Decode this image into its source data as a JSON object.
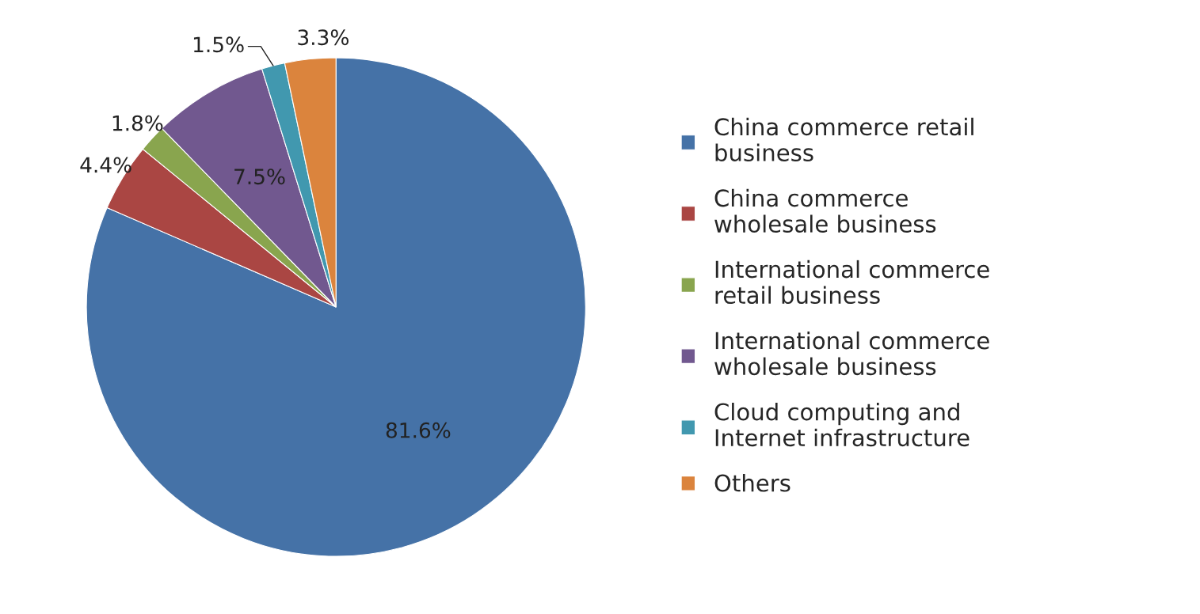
{
  "chart_data": {
    "type": "pie",
    "categories": [
      "China commerce retail\nbusiness",
      "China commerce\nwholesale business",
      "International commerce\nretail business",
      "International commerce\nwholesale business",
      "Cloud computing and\nInternet infrastructure",
      "Others"
    ],
    "values": [
      81.6,
      4.4,
      1.8,
      7.5,
      1.5,
      3.3
    ],
    "value_labels": [
      "81.6%",
      "4.4%",
      "1.8%",
      "7.5%",
      "1.5%",
      "3.3%"
    ],
    "colors": [
      "#4572a7",
      "#aa4643",
      "#89a54e",
      "#71588f",
      "#4198af",
      "#db843d"
    ],
    "legend": "right"
  }
}
